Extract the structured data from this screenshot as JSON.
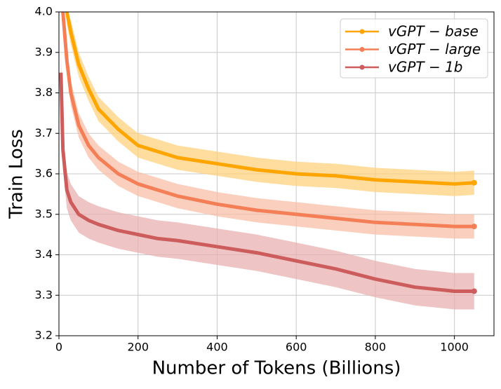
{
  "chart_data": {
    "type": "line",
    "x_label": "Number of Tokens (Billions)",
    "y_label": "Train Loss",
    "x": [
      5,
      10,
      20,
      30,
      50,
      75,
      100,
      150,
      200,
      250,
      300,
      400,
      500,
      600,
      700,
      800,
      900,
      1000,
      1050
    ],
    "series": [
      {
        "name": "vGPT − base",
        "color": "#ffa500",
        "band_color": "#ffd27f",
        "values": [
          null,
          null,
          4.0,
          3.95,
          3.87,
          3.81,
          3.76,
          3.71,
          3.67,
          3.655,
          3.64,
          3.625,
          3.61,
          3.6,
          3.595,
          3.585,
          3.58,
          3.575,
          3.578
        ],
        "lower": [
          null,
          null,
          3.97,
          3.92,
          3.84,
          3.78,
          3.73,
          3.68,
          3.64,
          3.625,
          3.61,
          3.595,
          3.58,
          3.57,
          3.565,
          3.555,
          3.55,
          3.545,
          3.548
        ],
        "upper": [
          null,
          null,
          4.0,
          3.98,
          3.9,
          3.84,
          3.79,
          3.74,
          3.7,
          3.685,
          3.67,
          3.655,
          3.64,
          3.63,
          3.625,
          3.615,
          3.61,
          3.605,
          3.608
        ]
      },
      {
        "name": "vGPT − large",
        "color": "#f47e55",
        "band_color": "#f9bfa8",
        "values": [
          null,
          4.0,
          3.88,
          3.8,
          3.72,
          3.67,
          3.64,
          3.6,
          3.575,
          3.56,
          3.545,
          3.525,
          3.51,
          3.5,
          3.49,
          3.48,
          3.475,
          3.47,
          3.47
        ],
        "lower": [
          null,
          3.97,
          3.85,
          3.77,
          3.69,
          3.64,
          3.61,
          3.57,
          3.545,
          3.53,
          3.515,
          3.495,
          3.48,
          3.47,
          3.46,
          3.45,
          3.445,
          3.44,
          3.44
        ],
        "upper": [
          null,
          4.0,
          3.91,
          3.83,
          3.75,
          3.7,
          3.67,
          3.63,
          3.605,
          3.59,
          3.575,
          3.555,
          3.54,
          3.53,
          3.52,
          3.51,
          3.505,
          3.5,
          3.5
        ]
      },
      {
        "name": "vGPT − 1b",
        "color": "#cd5c5c",
        "band_color": "#e8b0b0",
        "values": [
          3.85,
          3.66,
          3.56,
          3.53,
          3.5,
          3.485,
          3.475,
          3.46,
          3.45,
          3.44,
          3.435,
          3.42,
          3.405,
          3.385,
          3.365,
          3.34,
          3.32,
          3.31,
          3.31
        ],
        "lower": [
          3.8,
          3.615,
          3.515,
          3.485,
          3.455,
          3.44,
          3.43,
          3.415,
          3.405,
          3.395,
          3.39,
          3.375,
          3.36,
          3.34,
          3.32,
          3.295,
          3.275,
          3.265,
          3.265
        ],
        "upper": [
          3.9,
          3.705,
          3.605,
          3.575,
          3.545,
          3.53,
          3.52,
          3.505,
          3.495,
          3.485,
          3.48,
          3.465,
          3.45,
          3.43,
          3.41,
          3.385,
          3.365,
          3.355,
          3.355
        ]
      }
    ],
    "xlim": [
      0,
      1100
    ],
    "xticks": [
      0,
      200,
      400,
      600,
      800,
      1000
    ],
    "ylim": [
      3.2,
      4.0
    ],
    "yticks": [
      3.2,
      3.3,
      3.4,
      3.5,
      3.6,
      3.7,
      3.8,
      3.9,
      {
        "value": 4.0,
        "label": "4.0"
      }
    ],
    "grid": true,
    "legend": "upper right"
  }
}
